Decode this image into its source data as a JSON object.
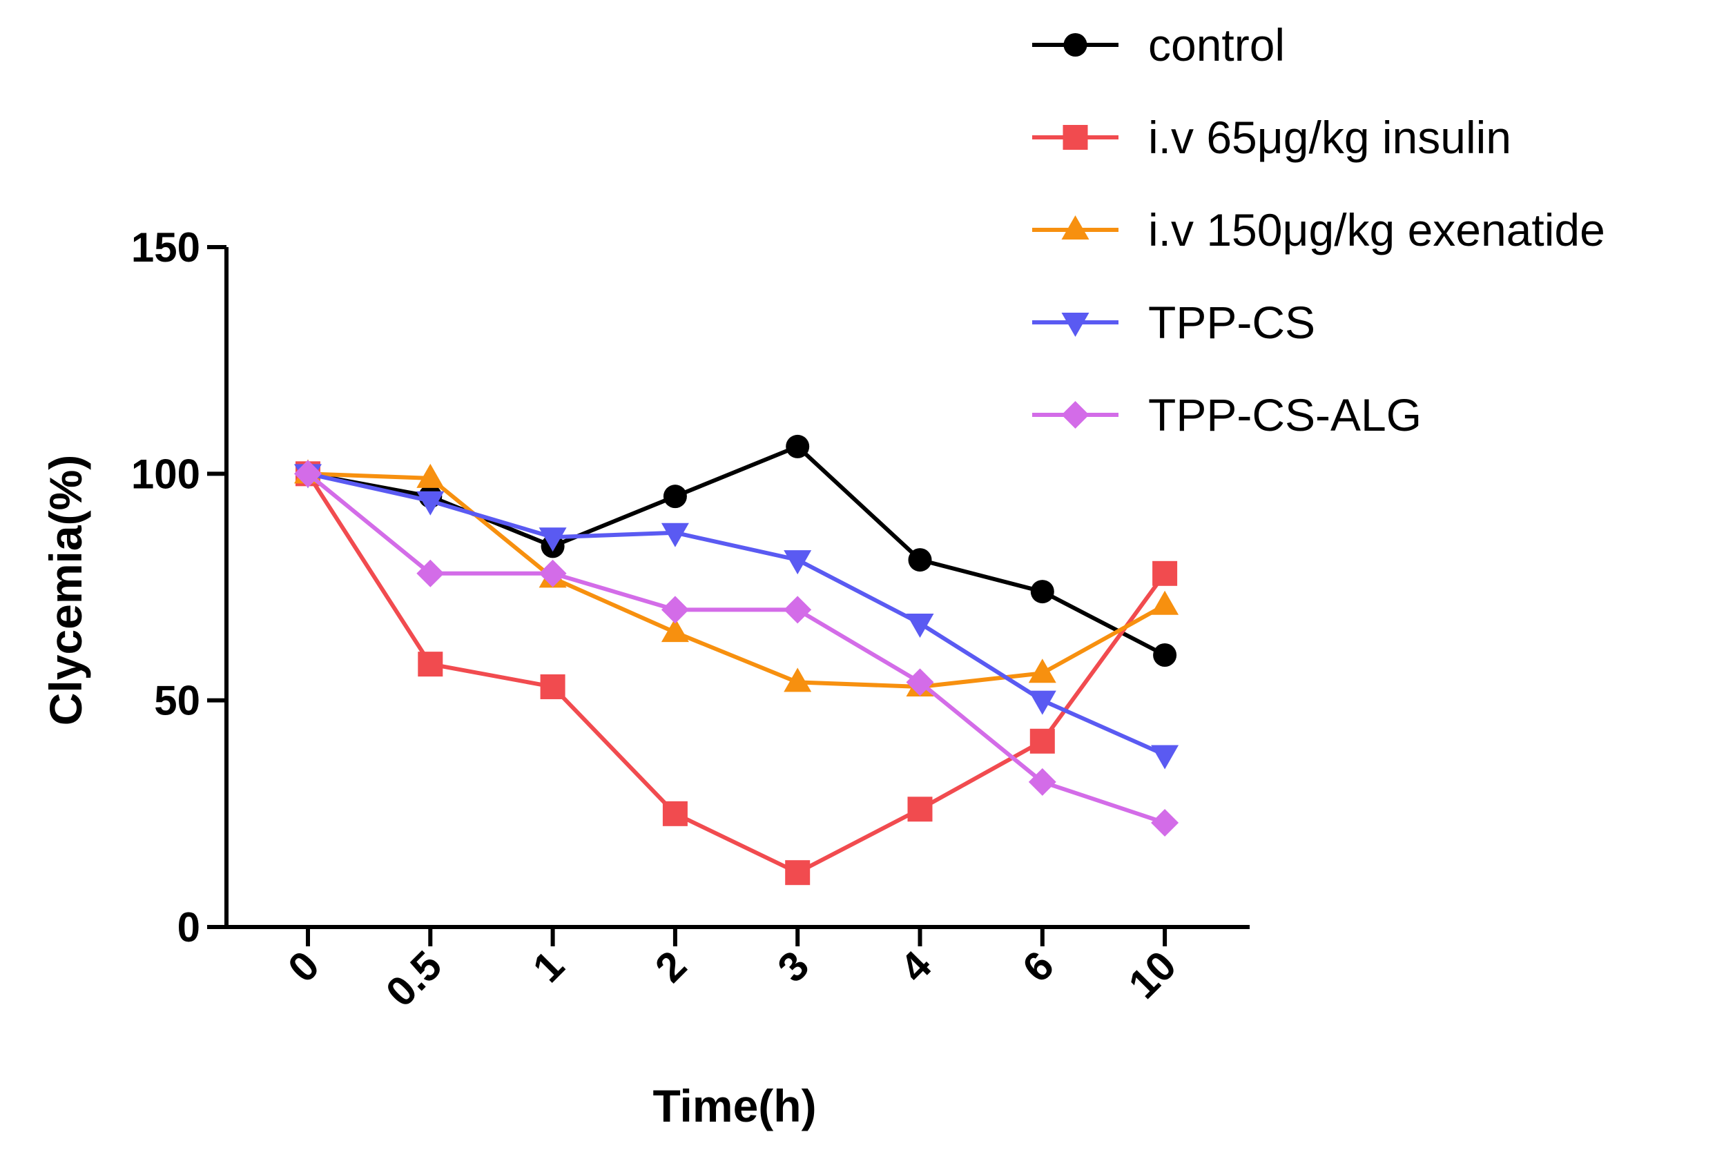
{
  "chart_data": {
    "type": "line",
    "title": "",
    "xlabel": "Time(h)",
    "ylabel": "Clycemia(%)",
    "ylim": [
      0,
      150
    ],
    "yticks": [
      0,
      50,
      100,
      150
    ],
    "categories": [
      "0",
      "0.5",
      "1",
      "2",
      "3",
      "4",
      "6",
      "10"
    ],
    "grid": false,
    "legend_position": "top-right",
    "series": [
      {
        "name": "control",
        "marker": "circle",
        "color": "#000000",
        "values": [
          100,
          95,
          84,
          95,
          106,
          81,
          74,
          60
        ]
      },
      {
        "name": "i.v 65μg/kg insulin",
        "marker": "square",
        "color": "#F14B4F",
        "values": [
          100,
          58,
          53,
          25,
          12,
          26,
          41,
          78
        ]
      },
      {
        "name": "i.v 150μg/kg exenatide",
        "marker": "triangle-up",
        "color": "#F7900F",
        "values": [
          100,
          99,
          77,
          65,
          54,
          53,
          56,
          71
        ]
      },
      {
        "name": "TPP-CS",
        "marker": "triangle-down",
        "color": "#5A5AF2",
        "values": [
          100,
          94,
          86,
          87,
          81,
          67,
          50,
          38
        ]
      },
      {
        "name": "TPP-CS-ALG",
        "marker": "diamond",
        "color": "#D36CE8",
        "values": [
          100,
          78,
          78,
          70,
          70,
          54,
          32,
          23
        ]
      }
    ]
  }
}
